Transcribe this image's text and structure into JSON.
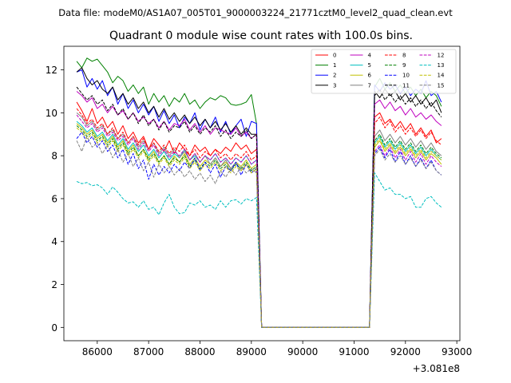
{
  "header": {
    "data_file": "Data file: modeM0/AS1A07_005T01_9000003224_21771cztM0_level2_quad_clean.evt"
  },
  "chart_data": {
    "type": "line",
    "title": "Quadrant 0 module wise count rates with 100.0s bins.",
    "xlabel": "",
    "ylabel": "",
    "offset_label": "+3.081e8",
    "offset_value": 308100000,
    "xlim": [
      85350,
      93060
    ],
    "ylim": [
      -0.62,
      13.1
    ],
    "xticks": [
      86000,
      87000,
      88000,
      89000,
      90000,
      91000,
      92000,
      93000
    ],
    "xtick_labels": [
      "86000",
      "87000",
      "88000",
      "89000",
      "90000",
      "91000",
      "92000",
      "93000"
    ],
    "yticks": [
      0,
      2,
      4,
      6,
      8,
      10,
      12
    ],
    "ytick_labels": [
      "0",
      "2",
      "4",
      "6",
      "8",
      "10",
      "12"
    ],
    "x_start": 85600,
    "bin": 100,
    "gap": {
      "start": 89200,
      "end": 91300
    },
    "x_end": 92700,
    "legend_position": "upper right",
    "series": [
      {
        "name": "0",
        "color": "#ff0000",
        "style": "solid",
        "pre": [
          10.5,
          10.1,
          9.6,
          10.2,
          9.5,
          9.8,
          9.3,
          9.6,
          9.0,
          9.4,
          8.8,
          9.1,
          8.6,
          8.9,
          8.3,
          8.8,
          8.5,
          8.2,
          8.7,
          8.1,
          8.6,
          8.3,
          8.0,
          8.5,
          8.2,
          8.4,
          8.0,
          8.3,
          8.1,
          8.4,
          8.2,
          8.6,
          8.3,
          8.5,
          8.1,
          8.3
        ],
        "post": [
          9.8,
          10.0,
          9.5,
          9.7,
          9.3,
          9.6,
          9.2,
          9.5,
          9.0,
          9.3,
          8.9,
          9.2,
          8.6,
          8.8
        ]
      },
      {
        "name": "1",
        "color": "#008000",
        "style": "solid",
        "pre": [
          12.4,
          12.1,
          12.55,
          12.4,
          12.5,
          12.2,
          11.9,
          11.4,
          11.7,
          11.5,
          11.0,
          11.3,
          10.9,
          11.2,
          10.4,
          10.9,
          10.5,
          10.8,
          10.3,
          10.7,
          10.5,
          10.9,
          10.4,
          10.6,
          10.2,
          10.5,
          10.7,
          10.6,
          10.8,
          10.7,
          10.4,
          10.35,
          10.4,
          10.5,
          10.85,
          9.5
        ],
        "post": [
          11.2,
          11.6,
          11.1,
          11.4,
          11.0,
          11.3,
          10.9,
          11.2,
          10.8,
          11.1,
          10.7,
          11.0,
          10.8,
          10.3
        ]
      },
      {
        "name": "2",
        "color": "#0000ff",
        "style": "solid",
        "pre": [
          11.9,
          12.0,
          11.2,
          11.6,
          11.1,
          11.5,
          10.8,
          11.2,
          10.4,
          10.9,
          10.2,
          10.6,
          10.0,
          10.4,
          9.9,
          10.3,
          9.6,
          10.1,
          9.5,
          9.9,
          9.3,
          9.8,
          9.5,
          10.0,
          9.2,
          9.7,
          9.3,
          9.8,
          9.1,
          9.6,
          9.0,
          9.4,
          9.7,
          8.9,
          9.6,
          9.5
        ],
        "post": [
          11.3,
          11.0,
          11.4,
          11.1,
          11.3,
          10.9,
          11.2,
          10.8,
          11.1,
          10.9,
          11.5,
          10.8,
          11.0,
          10.5
        ]
      },
      {
        "name": "3",
        "color": "#000000",
        "style": "solid",
        "pre": [
          11.9,
          12.1,
          11.6,
          11.3,
          11.5,
          11.1,
          10.9,
          11.2,
          10.6,
          10.9,
          10.4,
          10.7,
          10.2,
          10.5,
          10.0,
          10.3,
          9.8,
          10.2,
          9.7,
          10.0,
          9.6,
          9.9,
          9.5,
          9.8,
          9.4,
          9.7,
          9.3,
          9.6,
          9.2,
          9.5,
          9.1,
          9.4,
          9.0,
          9.3,
          9.0,
          9.0
        ],
        "post": [
          11.0,
          10.7,
          11.1,
          10.8,
          11.0,
          10.6,
          10.9,
          10.5,
          10.8,
          10.4,
          10.7,
          10.3,
          10.6,
          10.0
        ]
      },
      {
        "name": "4",
        "color": "#bf00bf",
        "style": "solid",
        "pre": [
          11.0,
          10.8,
          10.5,
          10.7,
          10.2,
          10.4,
          10.0,
          10.3,
          9.9,
          10.1,
          9.7,
          10.0,
          9.6,
          9.8,
          9.5,
          9.7,
          9.3,
          9.6,
          9.2,
          9.5,
          9.4,
          9.7,
          9.2,
          9.5,
          9.1,
          9.4,
          9.0,
          9.3,
          9.2,
          9.1,
          9.0,
          9.3,
          8.9,
          9.1,
          8.8,
          9.0
        ],
        "post": [
          10.4,
          10.6,
          10.2,
          10.5,
          10.1,
          10.3,
          9.9,
          10.2,
          9.8,
          10.0,
          9.7,
          9.9,
          9.6,
          9.4
        ]
      },
      {
        "name": "5",
        "color": "#00bfbf",
        "style": "solid",
        "pre": [
          9.6,
          9.4,
          9.1,
          9.3,
          8.9,
          9.1,
          8.7,
          9.0,
          8.5,
          8.8,
          8.3,
          8.6,
          8.2,
          8.5,
          8.0,
          8.3,
          7.9,
          8.2,
          7.8,
          8.1,
          7.9,
          8.3,
          7.8,
          8.0,
          7.7,
          8.0,
          7.8,
          8.1,
          7.7,
          7.9,
          7.6,
          7.9,
          7.7,
          8.0,
          7.6,
          7.8
        ],
        "post": [
          8.6,
          8.9,
          8.4,
          8.7,
          8.3,
          8.6,
          8.2,
          8.5,
          8.1,
          8.4,
          8.0,
          8.3,
          8.0,
          7.8
        ]
      },
      {
        "name": "6",
        "color": "#bfbf00",
        "style": "solid",
        "pre": [
          9.5,
          9.3,
          9.0,
          9.2,
          8.8,
          9.0,
          8.6,
          8.9,
          8.4,
          8.7,
          8.2,
          8.5,
          8.0,
          8.3,
          7.9,
          8.2,
          7.7,
          8.0,
          7.6,
          8.0,
          7.7,
          8.1,
          7.6,
          7.9,
          7.5,
          7.8,
          7.6,
          7.9,
          7.5,
          7.7,
          7.4,
          7.7,
          7.5,
          7.8,
          7.4,
          7.6
        ],
        "post": [
          8.4,
          8.7,
          8.2,
          8.5,
          8.1,
          8.4,
          8.0,
          8.3,
          7.9,
          8.2,
          7.8,
          8.1,
          7.9,
          7.6
        ]
      },
      {
        "name": "7",
        "color": "#808080",
        "style": "solid",
        "pre": [
          10.0,
          9.8,
          9.4,
          9.6,
          9.2,
          9.4,
          9.0,
          9.2,
          8.8,
          9.0,
          8.6,
          8.9,
          8.4,
          8.7,
          8.3,
          8.6,
          8.1,
          8.4,
          8.0,
          8.3,
          7.9,
          8.2,
          7.8,
          8.1,
          7.7,
          8.0,
          7.6,
          7.9,
          7.5,
          7.8,
          7.4,
          7.7,
          7.3,
          7.6,
          7.2,
          7.4
        ],
        "post": [
          8.9,
          9.2,
          8.7,
          9.0,
          8.6,
          8.9,
          8.5,
          8.8,
          8.4,
          8.7,
          8.3,
          8.6,
          8.2,
          8.0
        ]
      },
      {
        "name": "8",
        "color": "#ff0000",
        "style": "dashed",
        "pre": [
          10.2,
          9.9,
          9.5,
          9.7,
          9.3,
          9.5,
          9.0,
          9.3,
          8.8,
          9.1,
          8.6,
          8.9,
          8.5,
          8.8,
          8.3,
          8.6,
          8.2,
          8.5,
          8.1,
          8.4,
          8.2,
          8.5,
          8.0,
          8.3,
          7.9,
          8.2,
          8.0,
          8.3,
          7.9,
          8.1,
          7.8,
          8.1,
          7.9,
          8.2,
          7.8,
          8.0
        ],
        "post": [
          9.5,
          9.8,
          9.3,
          9.6,
          9.1,
          9.4,
          9.0,
          9.3,
          8.9,
          9.2,
          8.8,
          9.1,
          8.7,
          8.5
        ]
      },
      {
        "name": "9",
        "color": "#008000",
        "style": "dashed",
        "pre": [
          9.4,
          9.2,
          8.9,
          9.1,
          8.7,
          8.9,
          8.5,
          8.8,
          8.3,
          8.6,
          8.1,
          8.4,
          8.0,
          8.3,
          7.8,
          8.1,
          7.7,
          8.0,
          7.6,
          7.9,
          7.7,
          8.0,
          7.5,
          7.8,
          7.4,
          7.7,
          7.5,
          7.8,
          7.4,
          7.6,
          7.3,
          7.6,
          7.4,
          7.7,
          7.3,
          7.5
        ],
        "post": [
          8.7,
          9.0,
          8.5,
          8.8,
          8.4,
          8.7,
          8.3,
          8.6,
          8.2,
          8.5,
          8.1,
          8.4,
          8.1,
          7.9
        ]
      },
      {
        "name": "10",
        "color": "#0000ff",
        "style": "dashed",
        "pre": [
          8.8,
          9.1,
          8.6,
          8.9,
          8.4,
          8.7,
          8.2,
          8.5,
          7.9,
          8.3,
          7.6,
          8.1,
          7.4,
          7.8,
          6.9,
          7.6,
          7.1,
          7.5,
          7.2,
          7.6,
          7.3,
          7.7,
          7.4,
          7.9,
          7.3,
          7.7,
          7.2,
          7.6,
          7.0,
          7.5,
          7.3,
          7.7,
          7.1,
          7.6,
          7.2,
          7.4
        ],
        "post": [
          8.1,
          8.4,
          7.9,
          8.3,
          7.7,
          8.2,
          7.6,
          8.0,
          7.5,
          7.9,
          7.4,
          7.8,
          7.3,
          7.1
        ]
      },
      {
        "name": "11",
        "color": "#000000",
        "style": "dashed",
        "pre": [
          11.2,
          10.9,
          10.6,
          10.8,
          10.4,
          10.6,
          10.1,
          10.4,
          9.9,
          10.2,
          9.7,
          10.0,
          9.5,
          9.9,
          9.4,
          9.7,
          9.2,
          9.6,
          9.1,
          9.4,
          9.3,
          9.6,
          9.1,
          9.4,
          9.0,
          9.3,
          9.1,
          9.4,
          8.9,
          9.2,
          8.8,
          9.1,
          8.9,
          9.2,
          8.8,
          9.0
        ],
        "post": [
          10.8,
          11.1,
          10.6,
          10.9,
          10.5,
          10.8,
          10.4,
          10.7,
          10.3,
          10.6,
          10.2,
          10.5,
          10.1,
          9.8
        ]
      },
      {
        "name": "12",
        "color": "#bf00bf",
        "style": "dashed",
        "pre": [
          9.9,
          9.6,
          9.3,
          9.5,
          9.1,
          9.3,
          8.9,
          9.1,
          8.7,
          8.9,
          8.5,
          8.8,
          8.3,
          8.6,
          8.2,
          8.5,
          8.0,
          8.3,
          7.9,
          8.2,
          8.0,
          8.3,
          7.8,
          8.1,
          7.7,
          8.0,
          7.8,
          8.1,
          7.7,
          7.9,
          7.6,
          7.9,
          7.7,
          8.0,
          7.6,
          7.8
        ],
        "post": [
          8.2,
          8.5,
          8.0,
          8.4,
          7.9,
          8.3,
          7.8,
          8.2,
          7.7,
          8.1,
          7.6,
          8.0,
          7.7,
          7.5
        ]
      },
      {
        "name": "13",
        "color": "#00bfbf",
        "style": "dashed",
        "pre": [
          6.8,
          6.7,
          6.75,
          6.6,
          6.65,
          6.5,
          6.2,
          6.55,
          6.3,
          6.0,
          5.8,
          5.85,
          5.6,
          5.9,
          5.5,
          5.6,
          5.25,
          5.8,
          6.2,
          5.6,
          5.3,
          5.35,
          5.8,
          5.7,
          5.9,
          5.6,
          5.7,
          5.5,
          5.9,
          5.6,
          5.9,
          5.95,
          5.75,
          6.0,
          5.9,
          6.05
        ],
        "post": [
          7.2,
          6.8,
          6.4,
          6.5,
          6.2,
          6.2,
          6.0,
          6.1,
          5.6,
          5.6,
          6.0,
          6.1,
          5.8,
          5.6
        ]
      },
      {
        "name": "14",
        "color": "#bfbf00",
        "style": "dashed",
        "pre": [
          9.3,
          9.1,
          8.8,
          9.0,
          8.6,
          8.8,
          8.4,
          8.7,
          8.2,
          8.5,
          8.0,
          8.3,
          7.9,
          8.2,
          7.7,
          8.0,
          7.6,
          7.9,
          7.5,
          7.8,
          7.6,
          7.9,
          7.4,
          7.7,
          7.3,
          7.6,
          7.4,
          7.7,
          7.3,
          7.5,
          7.2,
          7.5,
          7.3,
          7.6,
          7.2,
          7.4
        ],
        "post": [
          8.5,
          8.8,
          8.3,
          8.6,
          8.2,
          8.5,
          8.1,
          8.4,
          8.0,
          8.3,
          7.9,
          8.2,
          8.0,
          7.8
        ]
      },
      {
        "name": "15",
        "color": "#808080",
        "style": "dashed",
        "pre": [
          8.7,
          8.2,
          8.9,
          8.4,
          8.6,
          8.1,
          8.5,
          7.9,
          8.3,
          7.7,
          8.1,
          7.5,
          7.9,
          7.3,
          7.7,
          7.0,
          7.6,
          7.2,
          7.5,
          7.1,
          7.4,
          7.0,
          7.3,
          6.9,
          7.2,
          6.8,
          7.1,
          6.7,
          7.3,
          7.0,
          7.4,
          7.1,
          7.5,
          7.2,
          7.4,
          7.2
        ],
        "post": [
          8.0,
          8.3,
          7.8,
          8.1,
          7.7,
          8.0,
          7.6,
          7.9,
          7.5,
          7.8,
          7.4,
          7.7,
          7.3,
          7.1
        ]
      }
    ]
  }
}
